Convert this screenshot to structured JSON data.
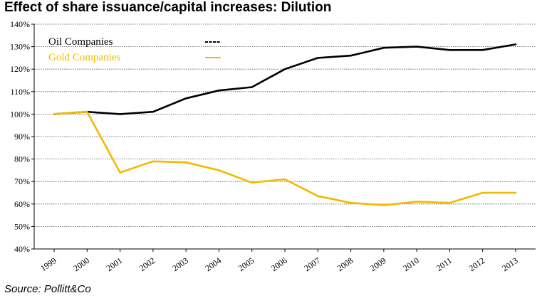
{
  "header": {
    "title": "Effect of share issuance/capital increases: Dilution"
  },
  "footer": {
    "source": "Source: Pollitt&Co"
  },
  "chart_data": {
    "type": "line",
    "title": "Effect of share issuance/capital increases: Dilution",
    "xlabel": "",
    "ylabel": "",
    "x": [
      "1999",
      "2000",
      "2001",
      "2002",
      "2003",
      "2004",
      "2005",
      "2006",
      "2007",
      "2008",
      "2009",
      "2010",
      "2011",
      "2012",
      "2013"
    ],
    "ylim": [
      40,
      140
    ],
    "yticks": [
      40,
      50,
      60,
      70,
      80,
      90,
      100,
      110,
      120,
      130,
      140
    ],
    "ytick_labels": [
      "40%",
      "50%",
      "60%",
      "70%",
      "80%",
      "90%",
      "100%",
      "110%",
      "120%",
      "130%",
      "140%"
    ],
    "grid": true,
    "legend_position": "top-left",
    "series": [
      {
        "name": "Oil Companies",
        "color": "#000000",
        "values": [
          100,
          101,
          100,
          101,
          107,
          110.5,
          112,
          120,
          125,
          126,
          129.5,
          130,
          128.5,
          128.5,
          131
        ]
      },
      {
        "name": "Gold Companies",
        "color": "#f5b800",
        "values": [
          100,
          101,
          74,
          79,
          78.5,
          75,
          69.5,
          71,
          63.5,
          60.5,
          59.5,
          61,
          60.5,
          65,
          65
        ]
      }
    ]
  }
}
